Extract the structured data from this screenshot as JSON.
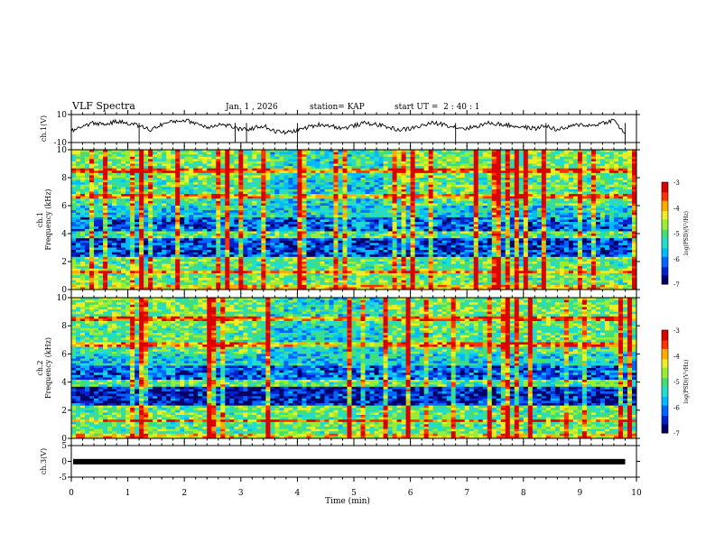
{
  "header": {
    "title": "VLF Spectra",
    "date": "Jan. 1 , 2026",
    "station": "station= KAP",
    "start": "start UT =  2 : 40 : 1"
  },
  "colors": {
    "colormap": [
      "#000066",
      "#0022cc",
      "#0066ff",
      "#00bbff",
      "#22ddcc",
      "#44dd77",
      "#99ee33",
      "#eeee22",
      "#ffaa00",
      "#ff3300",
      "#dd0000",
      "#ffffff"
    ]
  },
  "chart_data": [
    {
      "id": "ch1v",
      "type": "line",
      "ylabel": "ch.1(V)",
      "ylim": [
        -10,
        10
      ],
      "yticks": [
        10,
        -10
      ],
      "xlim": [
        0,
        10
      ],
      "series": [
        {
          "name": "ch.1",
          "x": [
            0.0,
            0.2,
            0.4,
            0.6,
            0.8,
            1.0,
            1.2,
            1.4,
            1.6,
            1.8,
            2.0,
            2.2,
            2.4,
            2.6,
            2.8,
            3.0,
            3.2,
            3.4,
            3.6,
            3.8,
            4.0,
            4.2,
            4.4,
            4.6,
            4.8,
            5.0,
            5.2,
            5.4,
            5.6,
            5.8,
            6.0,
            6.2,
            6.4,
            6.6,
            6.8,
            7.0,
            7.2,
            7.4,
            7.6,
            7.8,
            8.0,
            8.2,
            8.4,
            8.6,
            8.8,
            9.0,
            9.2,
            9.4,
            9.6,
            9.8
          ],
          "values": [
            -2,
            2,
            4,
            3,
            5,
            4,
            2,
            -1,
            3,
            5,
            6,
            4,
            1,
            3,
            2,
            -1,
            0,
            2,
            -2,
            -3,
            -1,
            1,
            3,
            2,
            0,
            2,
            4,
            3,
            1,
            -1,
            0,
            2,
            4,
            3,
            1,
            0,
            2,
            4,
            3,
            2,
            1,
            0,
            2,
            -1,
            1,
            3,
            2,
            4,
            6,
            -4
          ]
        }
      ]
    },
    {
      "id": "spec1",
      "type": "heatmap",
      "ylabel": "ch.1\nFrequency (kHz)",
      "ylim": [
        0,
        10
      ],
      "yticks": [
        0,
        2,
        4,
        6,
        8,
        10
      ],
      "xlim": [
        0,
        10
      ],
      "colorbar": {
        "label": "log(PSD)(V²/Hz)",
        "range": [
          -7,
          -3
        ],
        "ticks": [
          -3,
          -4,
          -5,
          -6,
          -7
        ]
      }
    },
    {
      "id": "spec2",
      "type": "heatmap",
      "ylabel": "ch.2\nFrequency (kHz)",
      "ylim": [
        0,
        10
      ],
      "yticks": [
        0,
        2,
        4,
        6,
        8,
        10
      ],
      "xlim": [
        0,
        10
      ],
      "colorbar": {
        "label": "log(PSD)(V²/Hz)",
        "range": [
          -7,
          -3
        ],
        "ticks": [
          -3,
          -4,
          -5,
          -6,
          -7
        ]
      }
    },
    {
      "id": "ch3v",
      "type": "line",
      "ylabel": "ch.3(V)",
      "ylim": [
        -5,
        5
      ],
      "yticks": [
        5,
        0,
        -5
      ],
      "xlim": [
        0,
        10
      ],
      "series": [
        {
          "name": "ch.3",
          "x": [
            0,
            9.8
          ],
          "values": [
            -0.1,
            -0.1
          ]
        }
      ]
    }
  ],
  "xaxis": {
    "label": "Time (min)",
    "ticks": [
      0,
      1,
      2,
      3,
      4,
      5,
      6,
      7,
      8,
      9,
      10
    ],
    "xlim": [
      0,
      10
    ]
  }
}
